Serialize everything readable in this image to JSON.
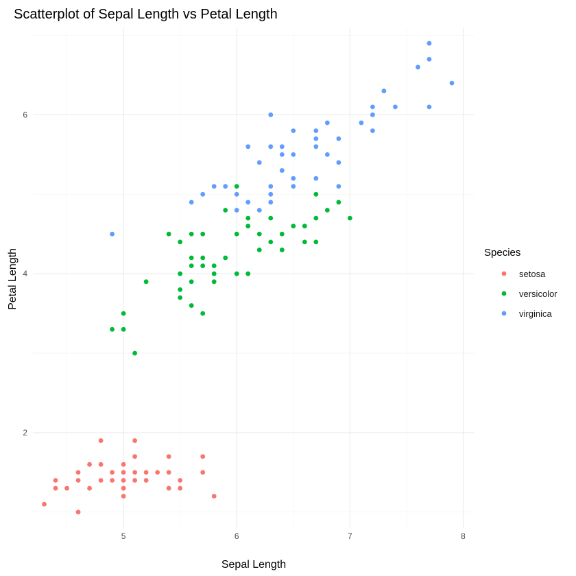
{
  "chart_data": {
    "type": "scatter",
    "title": "Scatterplot of Sepal Length vs Petal Length",
    "xlabel": "Sepal Length",
    "ylabel": "Petal Length",
    "xlim": [
      4.2,
      8.1
    ],
    "ylim": [
      0.8,
      7.1
    ],
    "xticks": [
      5,
      6,
      7,
      8
    ],
    "yticks": [
      2,
      4,
      6
    ],
    "grid": true,
    "legend": {
      "title": "Species",
      "position": "right"
    },
    "series": [
      {
        "name": "setosa",
        "color": "#F8766D",
        "points": [
          [
            4.3,
            1.1
          ],
          [
            4.4,
            1.3
          ],
          [
            4.4,
            1.4
          ],
          [
            4.5,
            1.3
          ],
          [
            4.6,
            1.0
          ],
          [
            4.6,
            1.4
          ],
          [
            4.6,
            1.5
          ],
          [
            4.7,
            1.3
          ],
          [
            4.7,
            1.6
          ],
          [
            4.8,
            1.4
          ],
          [
            4.8,
            1.6
          ],
          [
            4.8,
            1.9
          ],
          [
            4.9,
            1.4
          ],
          [
            4.9,
            1.5
          ],
          [
            5.0,
            1.2
          ],
          [
            5.0,
            1.3
          ],
          [
            5.0,
            1.4
          ],
          [
            5.0,
            1.5
          ],
          [
            5.0,
            1.6
          ],
          [
            5.1,
            1.4
          ],
          [
            5.1,
            1.5
          ],
          [
            5.1,
            1.7
          ],
          [
            5.1,
            1.9
          ],
          [
            5.2,
            1.4
          ],
          [
            5.2,
            1.5
          ],
          [
            5.3,
            1.5
          ],
          [
            5.4,
            1.3
          ],
          [
            5.4,
            1.5
          ],
          [
            5.4,
            1.7
          ],
          [
            5.5,
            1.3
          ],
          [
            5.5,
            1.4
          ],
          [
            5.7,
            1.5
          ],
          [
            5.7,
            1.7
          ],
          [
            5.8,
            1.2
          ]
        ]
      },
      {
        "name": "versicolor",
        "color": "#00BA38",
        "points": [
          [
            4.9,
            3.3
          ],
          [
            5.0,
            3.3
          ],
          [
            5.0,
            3.5
          ],
          [
            5.1,
            3.0
          ],
          [
            5.2,
            3.9
          ],
          [
            5.4,
            4.5
          ],
          [
            5.5,
            3.7
          ],
          [
            5.5,
            3.8
          ],
          [
            5.5,
            4.0
          ],
          [
            5.5,
            4.4
          ],
          [
            5.6,
            3.6
          ],
          [
            5.6,
            3.9
          ],
          [
            5.6,
            4.1
          ],
          [
            5.6,
            4.2
          ],
          [
            5.6,
            4.5
          ],
          [
            5.7,
            3.5
          ],
          [
            5.7,
            4.1
          ],
          [
            5.7,
            4.2
          ],
          [
            5.7,
            4.5
          ],
          [
            5.8,
            3.9
          ],
          [
            5.8,
            4.0
          ],
          [
            5.8,
            4.1
          ],
          [
            5.9,
            4.2
          ],
          [
            5.9,
            4.8
          ],
          [
            6.0,
            4.0
          ],
          [
            6.0,
            4.5
          ],
          [
            6.0,
            5.1
          ],
          [
            6.1,
            4.0
          ],
          [
            6.1,
            4.6
          ],
          [
            6.1,
            4.7
          ],
          [
            6.2,
            4.3
          ],
          [
            6.2,
            4.5
          ],
          [
            6.3,
            4.4
          ],
          [
            6.3,
            4.7
          ],
          [
            6.4,
            4.3
          ],
          [
            6.4,
            4.5
          ],
          [
            6.5,
            4.6
          ],
          [
            6.6,
            4.4
          ],
          [
            6.6,
            4.6
          ],
          [
            6.7,
            4.4
          ],
          [
            6.7,
            4.7
          ],
          [
            6.7,
            5.0
          ],
          [
            6.8,
            4.8
          ],
          [
            6.9,
            4.9
          ],
          [
            7.0,
            4.7
          ]
        ]
      },
      {
        "name": "virginica",
        "color": "#619CFF",
        "points": [
          [
            4.9,
            4.5
          ],
          [
            5.6,
            4.9
          ],
          [
            5.7,
            5.0
          ],
          [
            5.8,
            5.1
          ],
          [
            5.9,
            5.1
          ],
          [
            6.0,
            4.8
          ],
          [
            6.0,
            5.0
          ],
          [
            6.1,
            4.9
          ],
          [
            6.1,
            5.6
          ],
          [
            6.2,
            4.8
          ],
          [
            6.2,
            5.4
          ],
          [
            6.3,
            4.9
          ],
          [
            6.3,
            5.0
          ],
          [
            6.3,
            5.1
          ],
          [
            6.3,
            5.6
          ],
          [
            6.3,
            6.0
          ],
          [
            6.4,
            5.3
          ],
          [
            6.4,
            5.5
          ],
          [
            6.4,
            5.6
          ],
          [
            6.5,
            5.1
          ],
          [
            6.5,
            5.2
          ],
          [
            6.5,
            5.5
          ],
          [
            6.5,
            5.8
          ],
          [
            6.7,
            5.2
          ],
          [
            6.7,
            5.6
          ],
          [
            6.7,
            5.7
          ],
          [
            6.7,
            5.8
          ],
          [
            6.8,
            5.5
          ],
          [
            6.8,
            5.9
          ],
          [
            6.9,
            5.1
          ],
          [
            6.9,
            5.4
          ],
          [
            6.9,
            5.7
          ],
          [
            7.1,
            5.9
          ],
          [
            7.2,
            5.8
          ],
          [
            7.2,
            6.0
          ],
          [
            7.2,
            6.1
          ],
          [
            7.3,
            6.3
          ],
          [
            7.4,
            6.1
          ],
          [
            7.6,
            6.6
          ],
          [
            7.7,
            6.1
          ],
          [
            7.7,
            6.7
          ],
          [
            7.7,
            6.9
          ],
          [
            7.9,
            6.4
          ]
        ]
      }
    ]
  }
}
